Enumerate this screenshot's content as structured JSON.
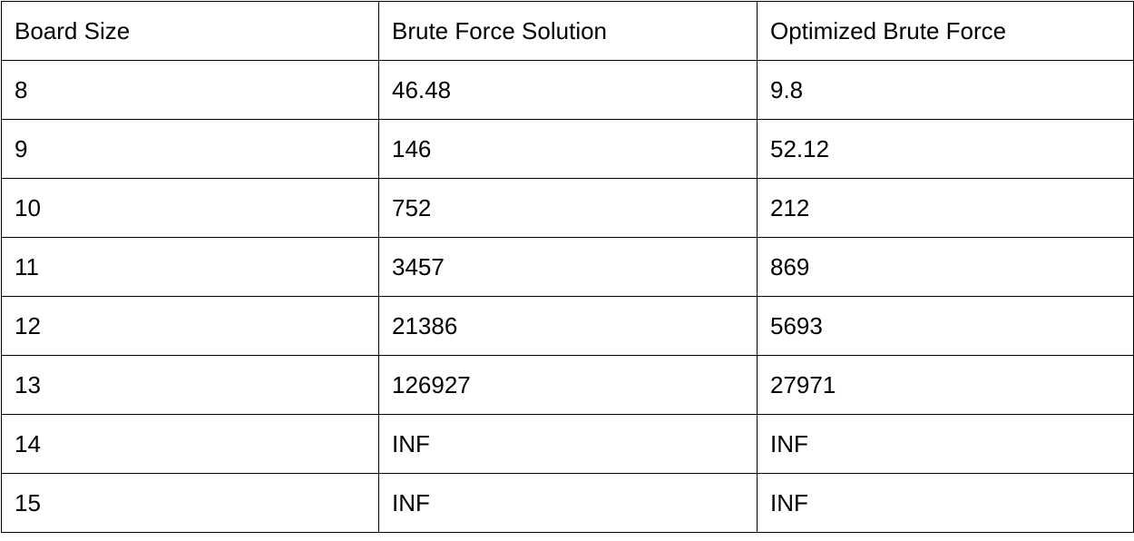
{
  "table": {
    "headers": [
      "Board Size",
      "Brute Force Solution",
      "Optimized Brute Force"
    ],
    "rows": [
      [
        "8",
        "46.48",
        "9.8"
      ],
      [
        "9",
        "146",
        "52.12"
      ],
      [
        "10",
        "752",
        "212"
      ],
      [
        "11",
        "3457",
        "869"
      ],
      [
        "12",
        "21386",
        "5693"
      ],
      [
        "13",
        "126927",
        "27971"
      ],
      [
        "14",
        "INF",
        "INF"
      ],
      [
        "15",
        "INF",
        "INF"
      ]
    ]
  }
}
